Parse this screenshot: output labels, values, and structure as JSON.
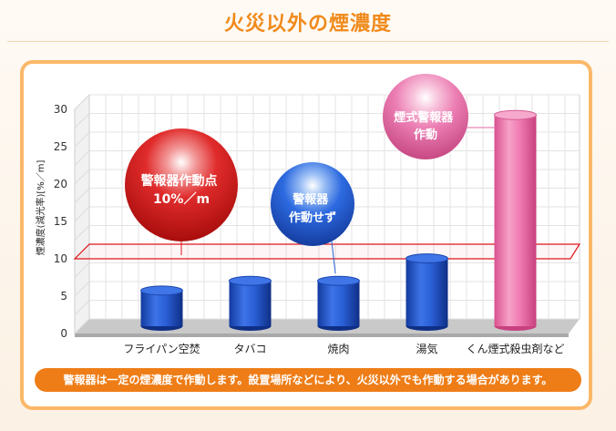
{
  "page": {
    "title": "火災以外の煙濃度",
    "note": "警報器は一定の煙濃度で作動します。設置場所などにより、火災以外でも作動する場合があります。"
  },
  "chart_data": {
    "type": "bar",
    "title": "",
    "xlabel": "",
    "ylabel": "煙濃度(減光率)[%／m]",
    "ylim": [
      0,
      30
    ],
    "yticks": [
      0,
      5,
      10,
      15,
      20,
      25,
      30
    ],
    "grid": true,
    "categories": [
      "フライパン空焚",
      "タバコ",
      "焼肉",
      "湯気",
      "くん煙式殺虫剤など"
    ],
    "values": [
      5.5,
      6.8,
      6.8,
      9.8,
      29
    ],
    "bar_colors": [
      "#1f4fc4",
      "#1f4fc4",
      "#1f4fc4",
      "#1f4fc4",
      "#ec6fa9"
    ],
    "threshold": {
      "value": 10,
      "color": "#e0141c"
    },
    "annotations": [
      {
        "id": "alarm-threshold",
        "lines": [
          "警報器作動点",
          "10%／m"
        ],
        "color": "#d81a1a"
      },
      {
        "id": "no-activation",
        "lines": [
          "警報器",
          "作動せず"
        ],
        "color": "#2462d6"
      },
      {
        "id": "activation",
        "lines": [
          "煙式警報器",
          "作動"
        ],
        "color": "#e46aa6"
      }
    ]
  }
}
